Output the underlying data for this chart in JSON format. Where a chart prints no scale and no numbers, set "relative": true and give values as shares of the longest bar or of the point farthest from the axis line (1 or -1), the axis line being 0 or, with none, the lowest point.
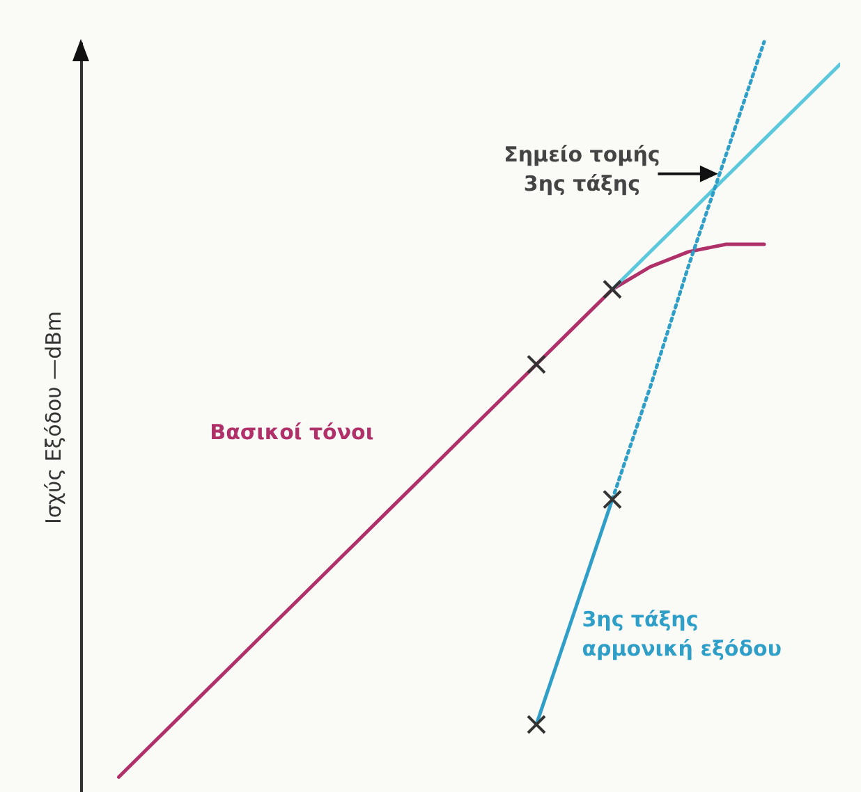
{
  "chart_data": {
    "type": "line",
    "relative": true,
    "ylabel": "Ισχύς Εξόδου —dBm",
    "annotations": [
      "Σημείο τομής 3ης τάξης"
    ],
    "categories": [
      null,
      null,
      null,
      null,
      null,
      null,
      null,
      null,
      null,
      null,
      null,
      null,
      null,
      null,
      null,
      null,
      null,
      null,
      null,
      null,
      null
    ],
    "series": [
      {
        "name": "Βασικοί τόνοι",
        "color": "#b0306a",
        "line_style": "solid",
        "values": [
          null,
          0.02,
          0.07,
          0.12,
          0.17,
          0.22,
          0.27,
          0.32,
          0.37,
          0.42,
          0.47,
          0.52,
          0.57,
          0.62,
          0.67,
          0.7,
          0.72,
          0.73,
          0.73,
          null,
          null
        ]
      },
      {
        "color": "#5cc8dc",
        "line_style": "solid",
        "values": [
          null,
          null,
          null,
          null,
          null,
          null,
          null,
          null,
          null,
          null,
          null,
          null,
          null,
          null,
          0.67,
          0.72,
          0.77,
          0.82,
          0.87,
          0.92,
          0.97
        ]
      },
      {
        "name": "3ης τάξης αρμονική εξόδου",
        "color": "#2f9fc8",
        "line_style": "solid",
        "values": [
          null,
          null,
          null,
          null,
          null,
          null,
          null,
          null,
          null,
          null,
          null,
          null,
          0.09,
          0.24,
          0.39,
          null,
          null,
          null,
          null,
          null,
          null
        ]
      },
      {
        "color": "#2f9fc8",
        "line_style": "dotted",
        "values": [
          null,
          null,
          null,
          null,
          null,
          null,
          null,
          null,
          null,
          null,
          null,
          null,
          null,
          null,
          0.39,
          0.54,
          0.7,
          0.85,
          1.0,
          null,
          null
        ]
      }
    ]
  }
}
